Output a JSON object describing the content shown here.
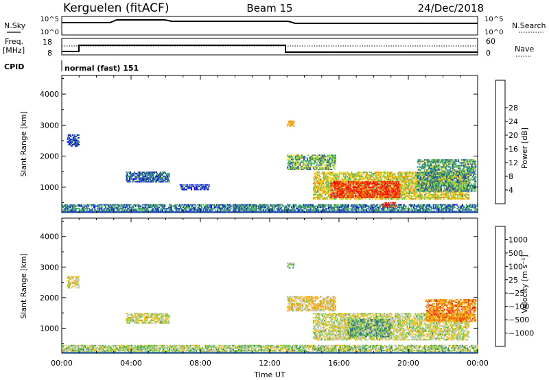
{
  "header": {
    "station": "Kerguelen (fitACF)",
    "beam": "Beam 15",
    "date": "24/Dec/2018"
  },
  "panels": {
    "nsky": {
      "label": "N.Sky",
      "ticks": [
        "10^5",
        "10^0"
      ],
      "right_label": "N.Search",
      "right_ticks": [
        "10^5",
        "10^0"
      ]
    },
    "freq": {
      "label_line1": "Freq.",
      "label_line2": "[MHz]",
      "ticks": [
        "18",
        "8"
      ],
      "right_label": "Nave",
      "right_ticks": [
        "60",
        "0"
      ]
    },
    "cpid": {
      "label": "CPID",
      "text": "normal (fast) 151"
    }
  },
  "chart_data": [
    {
      "type": "heatmap",
      "name": "power",
      "ylabel": "Slant Range [km]",
      "ylim": [
        180,
        4600
      ],
      "yticks": [
        "1000",
        "2000",
        "3000",
        "4000"
      ],
      "xlim": [
        "00:00",
        "24:00"
      ],
      "colorbar": {
        "label": "Power [dB]",
        "ticks": [
          "4",
          "8",
          "12",
          "16",
          "20",
          "24",
          "28"
        ],
        "colors": [
          "#0000ff",
          "#1f4fb5",
          "#2e8b57",
          "#58c85a",
          "#ffd400",
          "#ff9900",
          "#ff6600",
          "#ff2a00",
          "#ff0000"
        ]
      },
      "regions": [
        {
          "t0": 0.0,
          "t1": 24.0,
          "r0": 200,
          "r1": 450,
          "level": 0.25
        },
        {
          "t0": 0.3,
          "t1": 1.0,
          "r0": 2300,
          "r1": 2700,
          "level": 0.15
        },
        {
          "t0": 3.7,
          "t1": 6.2,
          "r0": 1150,
          "r1": 1500,
          "level": 0.2
        },
        {
          "t0": 6.8,
          "t1": 8.5,
          "r0": 900,
          "r1": 1100,
          "level": 0.1
        },
        {
          "t0": 13.0,
          "t1": 13.4,
          "r0": 2950,
          "r1": 3150,
          "level": 0.6
        },
        {
          "t0": 13.0,
          "t1": 15.8,
          "r0": 1550,
          "r1": 2050,
          "level": 0.35
        },
        {
          "t0": 14.5,
          "t1": 23.5,
          "r0": 600,
          "r1": 1500,
          "level": 0.5
        },
        {
          "t0": 15.5,
          "t1": 19.5,
          "r0": 650,
          "r1": 1200,
          "level": 0.85
        },
        {
          "t0": 18.5,
          "t1": 19.3,
          "r0": 350,
          "r1": 520,
          "level": 0.95
        },
        {
          "t0": 20.5,
          "t1": 23.9,
          "r0": 850,
          "r1": 1900,
          "level": 0.3
        }
      ]
    },
    {
      "type": "heatmap",
      "name": "velocity",
      "ylabel": "Slant Range [km]",
      "ylim": [
        180,
        4600
      ],
      "yticks": [
        "1000",
        "2000",
        "3000",
        "4000"
      ],
      "xlim": [
        "00:00",
        "24:00"
      ],
      "xticks": [
        "00:00",
        "04:00",
        "08:00",
        "12:00",
        "16:00",
        "20:00",
        "00:00"
      ],
      "xlabel": "Time UT",
      "colorbar": {
        "label": "Velocity [m s⁻¹]",
        "ticks": [
          "1000",
          "500",
          "100",
          "25",
          "−25",
          "−100",
          "−500",
          "−1000"
        ],
        "colors": [
          "#1f2fd0",
          "#2b66a8",
          "#2e8b57",
          "#72cc44",
          "#c8c8c8",
          "#ffc000",
          "#ff9000",
          "#ff5a00",
          "#ff0000"
        ]
      },
      "regions": [
        {
          "t0": 0.0,
          "t1": 24.0,
          "r0": 200,
          "r1": 450,
          "level": 0.45
        },
        {
          "t0": 0.3,
          "t1": 1.0,
          "r0": 2300,
          "r1": 2700,
          "level": 0.55
        },
        {
          "t0": 3.7,
          "t1": 6.2,
          "r0": 1150,
          "r1": 1500,
          "level": 0.5
        },
        {
          "t0": 13.0,
          "t1": 13.4,
          "r0": 2950,
          "r1": 3150,
          "level": 0.35
        },
        {
          "t0": 13.0,
          "t1": 15.8,
          "r0": 1550,
          "r1": 2050,
          "level": 0.58
        },
        {
          "t0": 14.5,
          "t1": 23.5,
          "r0": 600,
          "r1": 1500,
          "level": 0.5
        },
        {
          "t0": 16.5,
          "t1": 19.0,
          "r0": 700,
          "r1": 1300,
          "level": 0.35
        },
        {
          "t0": 21.0,
          "t1": 23.9,
          "r0": 1200,
          "r1": 1950,
          "level": 0.75
        }
      ]
    }
  ]
}
